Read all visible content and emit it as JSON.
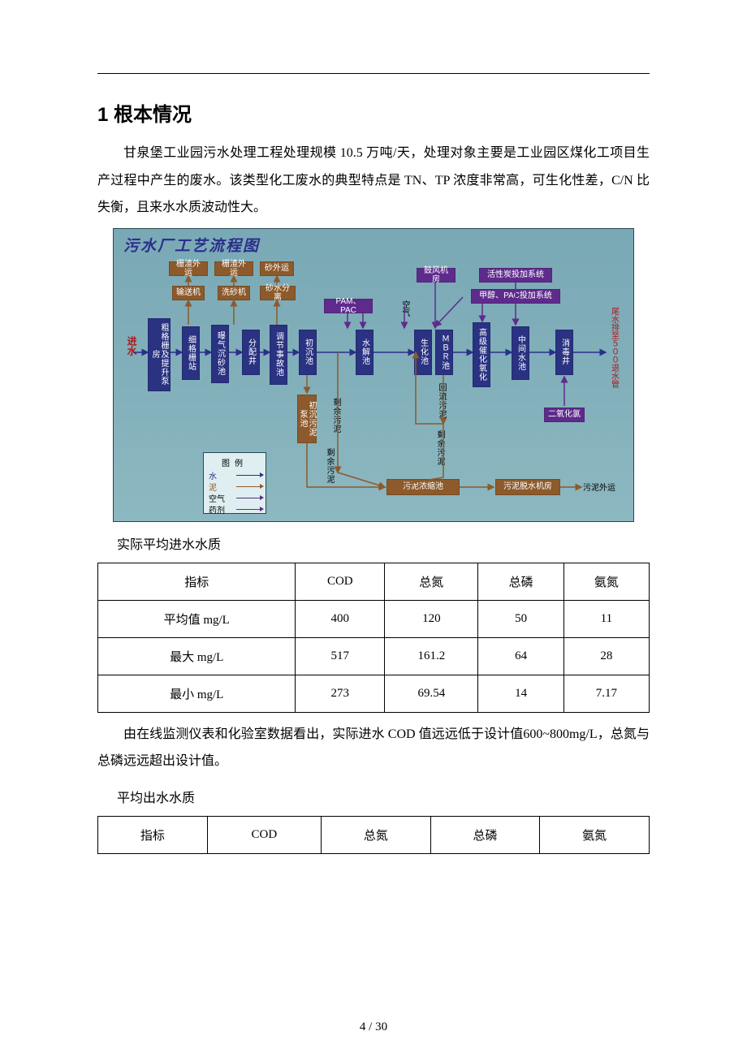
{
  "page": {
    "current": 4,
    "total": 30,
    "sep": " / "
  },
  "heading": "1 根本情况",
  "para1": "甘泉堡工业园污水处理工程处理规模 10.5 万吨/天，处理对象主要是工业园区煤化工项目生产过程中产生的废水。该类型化工废水的典型特点是 TN、TP 浓度非常高，可生化性差，C/N 比失衡，且来水水质波动性大。",
  "caption1": "实际平均进水水质",
  "table1": {
    "headers": [
      "指标",
      "COD",
      "总氮",
      "总磷",
      "氨氮"
    ],
    "rows": [
      [
        "平均值 mg/L",
        "400",
        "120",
        "50",
        "11"
      ],
      [
        "最大 mg/L",
        "517",
        "161.2",
        "64",
        "28"
      ],
      [
        "最小 mg/L",
        "273",
        "69.54",
        "14",
        "7.17"
      ]
    ]
  },
  "para2": "由在线监测仪表和化验室数据看出，实际进水 COD 值远远低于设计值600~800mg/L，总氮与总磷远远超出设计值。",
  "caption2": "平均出水水质",
  "table2": {
    "headers": [
      "指标",
      "COD",
      "总氮",
      "总磷",
      "氨氮"
    ]
  },
  "diagram": {
    "title": "污水厂工艺流程图",
    "colors": {
      "navy": "#2a3282",
      "purple": "#5e2b8c",
      "brown": "#8c5a2b",
      "bg_top": "#7aa9b6",
      "bg_bot": "#8db8c1",
      "water": "#2b2e8b",
      "mud": "#8c5a2b",
      "air": "#5e2b8c",
      "agent": "#5e2b8c",
      "red": "#b01818"
    },
    "inlet": "进水",
    "outlet": "尾水排至５００退水管",
    "air_label": "空气",
    "pam_pac": "PAM、PAC",
    "backflow": "回流污泥",
    "excess1": "剩余污泥",
    "excess2": "剩余污泥",
    "excess3": "剩余污泥",
    "clo2": "二氧化氯",
    "sludge_out": "污泥外运",
    "legend": {
      "title": "图例",
      "water": "水",
      "mud": "泥",
      "air": "空气",
      "agent": "药剂"
    },
    "top_row": {
      "n1": "栅渣外运",
      "n2": "栅渣外运",
      "n3": "砂外运",
      "m1": "输送机",
      "m2": "洗砂机",
      "m3": "砂水分离",
      "r1": "鼓风机房",
      "r2": "活性炭投加系统",
      "r3": "甲醇、PAC投加系统"
    },
    "main": {
      "b1": "粗格栅及提升泵房",
      "b2": "细格栅站",
      "b3": "曝气沉砂池",
      "b4": "分配井",
      "b5": "调节事故池",
      "b6": "初沉池",
      "b7": "水解池",
      "b8": "生化池",
      "b9": "ＭＢＲ池",
      "b10": "高级催化氧化",
      "b11": "中间水池",
      "b12": "消毒井",
      "s1": "初沉污泥泵池",
      "s2": "污泥浓缩池",
      "s3": "污泥脱水机房"
    }
  }
}
